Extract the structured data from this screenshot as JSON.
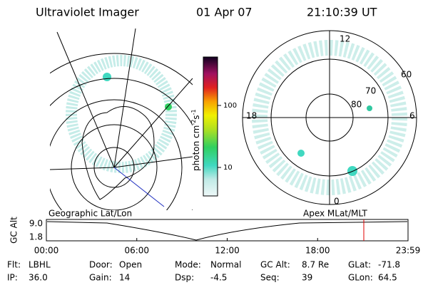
{
  "header": {
    "title": "Ultraviolet Imager",
    "date": "01 Apr 07",
    "time": "21:10:39 UT"
  },
  "colorbar": {
    "label": [
      "photon cm",
      "-2",
      "s",
      "-1"
    ],
    "ticks": [
      "100",
      "10"
    ]
  },
  "polar": {
    "mlt": [
      "12",
      "18",
      "6",
      "0"
    ],
    "mlat": [
      "60",
      "70",
      "80"
    ]
  },
  "captions": {
    "left": "Geographic Lat/Lon",
    "right": "Apex MLat/MLT"
  },
  "altitude": {
    "ylabel": "GC Alt",
    "yticks": [
      "9.0",
      "1.8"
    ],
    "xticks": [
      "00:00",
      "06:00",
      "12:00",
      "18:00",
      "23:59"
    ]
  },
  "info": {
    "rows": [
      [
        [
          "Flt:",
          "LBHL"
        ],
        [
          "Door:",
          "Open"
        ],
        [
          "Mode:",
          "Normal"
        ],
        [
          "GC Alt:",
          "8.7 Re"
        ],
        [
          "GLat:",
          "-71.8"
        ]
      ],
      [
        [
          "IP:",
          "36.0"
        ],
        [
          "Gain:",
          "14"
        ],
        [
          "Dsp:",
          "-4.5"
        ],
        [
          "Seq:",
          "39"
        ],
        [
          "GLon:",
          "64.5"
        ]
      ]
    ]
  }
}
